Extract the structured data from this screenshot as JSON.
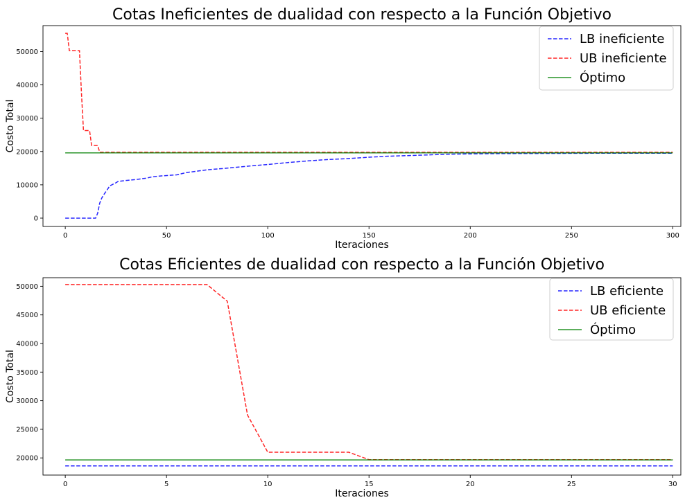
{
  "chart_data": [
    {
      "type": "line",
      "title": "Cotas Ineficientes de dualidad con respecto a la Función Objetivo",
      "xlabel": "Iteraciones",
      "ylabel": "Costo Total",
      "xlim": [
        -11,
        304
      ],
      "ylim": [
        -2500,
        57800
      ],
      "xticks": [
        0,
        50,
        100,
        150,
        200,
        250,
        300
      ],
      "yticks": [
        0,
        10000,
        20000,
        30000,
        40000,
        50000
      ],
      "grid": false,
      "legend_position": "top-right",
      "series": [
        {
          "name": "LB ineficiente",
          "color": "#0000ff",
          "style": "dashed",
          "x": [
            0,
            15,
            16,
            17,
            18,
            19,
            21,
            22,
            23,
            24,
            25,
            26,
            30,
            35,
            40,
            43,
            48,
            55,
            60,
            65,
            70,
            80,
            90,
            100,
            110,
            120,
            130,
            140,
            150,
            160,
            170,
            180,
            190,
            200,
            210,
            220,
            230,
            240,
            250,
            260,
            270,
            280,
            290,
            300
          ],
          "y": [
            0,
            0,
            1500,
            4500,
            6000,
            7000,
            8800,
            9700,
            10000,
            10300,
            10600,
            11000,
            11300,
            11600,
            12000,
            12400,
            12700,
            13000,
            13700,
            14100,
            14500,
            15000,
            15600,
            16100,
            16700,
            17200,
            17600,
            17900,
            18300,
            18600,
            18800,
            19000,
            19200,
            19300,
            19350,
            19400,
            19420,
            19440,
            19460,
            19470,
            19480,
            19490,
            19495,
            19500
          ]
        },
        {
          "name": "UB ineficiente",
          "color": "#ff0000",
          "style": "dashed",
          "x": [
            0,
            1,
            2,
            7,
            8,
            9,
            12,
            13,
            16,
            17,
            300
          ],
          "y": [
            55500,
            55500,
            50300,
            50300,
            37500,
            26300,
            26300,
            21800,
            21800,
            19800,
            19800
          ]
        },
        {
          "name": "Óptimo",
          "color": "#008000",
          "style": "solid",
          "x": [
            0,
            300
          ],
          "y": [
            19600,
            19600
          ]
        }
      ]
    },
    {
      "type": "line",
      "title": "Cotas Eficientes de dualidad con respecto a la Función Objetivo",
      "xlabel": "Iteraciones",
      "ylabel": "Costo Total",
      "xlim": [
        -1.1,
        30.4
      ],
      "ylim": [
        17000,
        51500
      ],
      "xticks": [
        0,
        5,
        10,
        15,
        20,
        25,
        30
      ],
      "yticks": [
        20000,
        25000,
        30000,
        35000,
        40000,
        45000,
        50000
      ],
      "grid": false,
      "legend_position": "top-right",
      "series": [
        {
          "name": "LB eficiente",
          "color": "#0000ff",
          "style": "dashed",
          "x": [
            0,
            30
          ],
          "y": [
            18600,
            18600
          ]
        },
        {
          "name": "UB eficiente",
          "color": "#ff0000",
          "style": "dashed",
          "x": [
            0,
            7,
            8,
            9,
            10,
            14,
            15,
            30
          ],
          "y": [
            50300,
            50300,
            47400,
            27500,
            21000,
            21000,
            19700,
            19700
          ]
        },
        {
          "name": "Óptimo",
          "color": "#008000",
          "style": "solid",
          "x": [
            0,
            30
          ],
          "y": [
            19650,
            19650
          ]
        }
      ]
    }
  ]
}
